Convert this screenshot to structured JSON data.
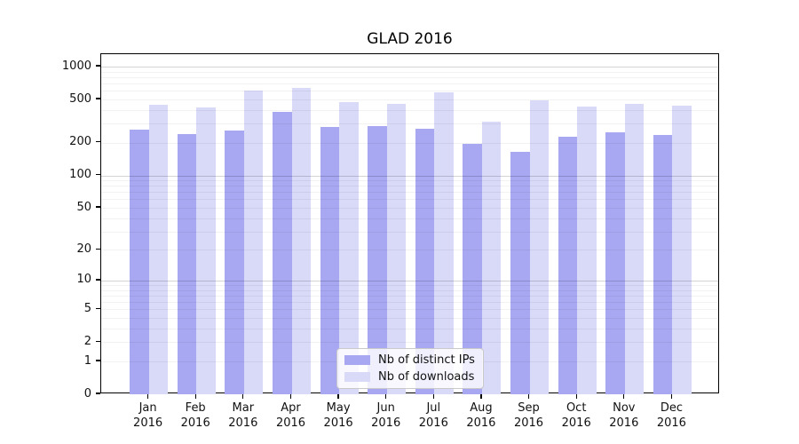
{
  "title": "GLAD 2016",
  "chart_data": {
    "type": "bar",
    "title": "GLAD 2016",
    "categories": [
      "Jan 2016",
      "Feb 2016",
      "Mar 2016",
      "Apr 2016",
      "May 2016",
      "Jun 2016",
      "Jul 2016",
      "Aug 2016",
      "Sep 2016",
      "Oct 2016",
      "Nov 2016",
      "Dec 2016"
    ],
    "series": [
      {
        "name": "Nb of distinct IPs",
        "color": "#a7a7f2",
        "values": [
          264,
          240,
          259,
          385,
          278,
          285,
          268,
          195,
          165,
          226,
          248,
          238
        ]
      },
      {
        "name": "Nb of downloads",
        "color": "#d9d9f8",
        "values": [
          445,
          422,
          605,
          640,
          470,
          455,
          585,
          315,
          490,
          430,
          455,
          439
        ]
      }
    ],
    "yscale": "symlog",
    "yticks": [
      0,
      1,
      2,
      5,
      10,
      20,
      50,
      100,
      200,
      500,
      1000
    ],
    "ylim": [
      0,
      1300
    ],
    "xlabel": "",
    "ylabel": "",
    "grid": true,
    "legend_position": "lower center"
  }
}
